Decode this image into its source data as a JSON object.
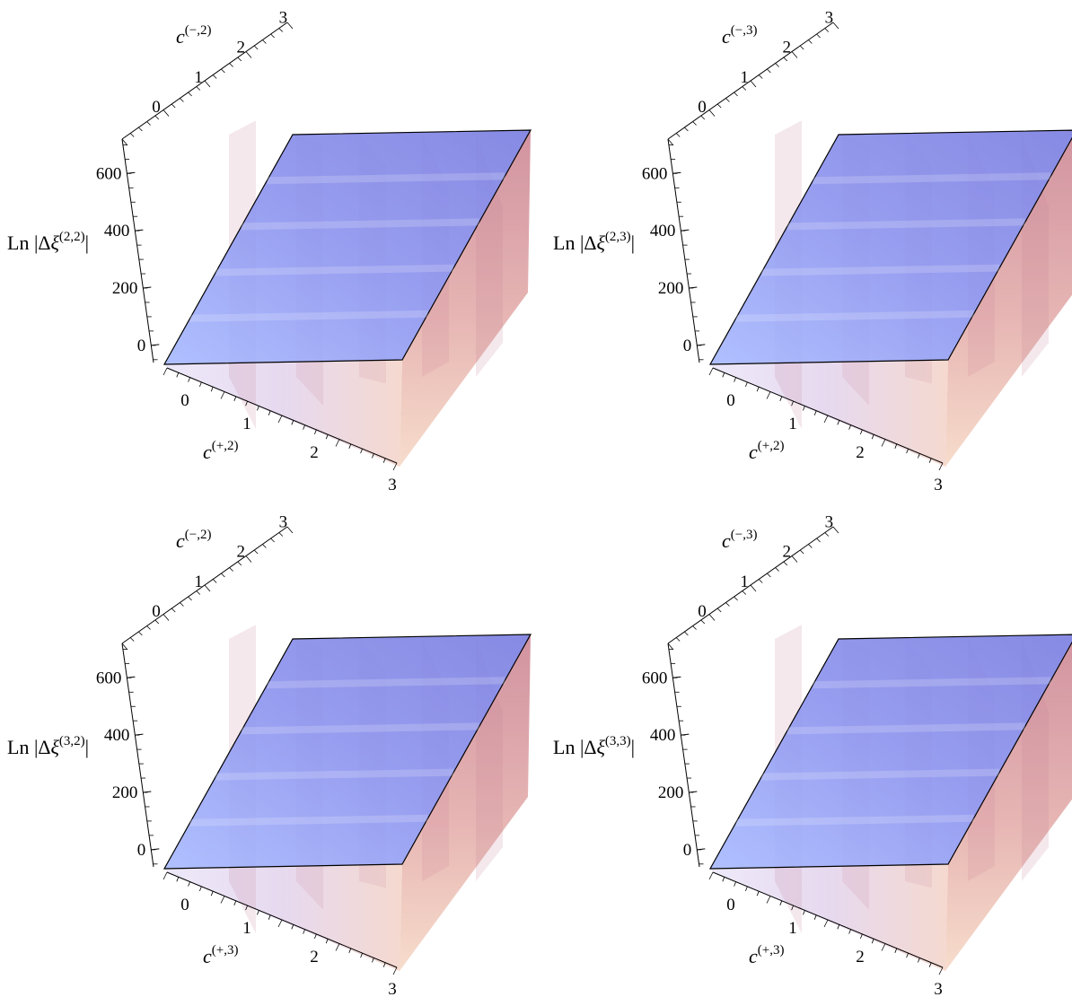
{
  "chart_data": [
    {
      "type": "surface3d",
      "zlabel": "Ln |Δξ(2,2)|",
      "zlabel_base": "Ln |Δ",
      "zlabel_sym": "ξ",
      "zlabel_sup": "(2,2)",
      "zlabel_end": "|",
      "x_axis": {
        "symbol": "c",
        "sup": "(+,2)",
        "ticks": [
          "0",
          "1",
          "2",
          "3"
        ],
        "range": [
          0,
          3
        ]
      },
      "y_axis": {
        "symbol": "c",
        "sup": "(−,2)",
        "ticks": [
          "0",
          "1",
          "2",
          "3"
        ],
        "range": [
          0,
          3
        ]
      },
      "z_axis": {
        "ticks": [
          "0",
          "200",
          "400",
          "600"
        ],
        "range": [
          -60,
          720
        ]
      },
      "surface_corners": [
        {
          "x": 0,
          "y": 0,
          "z": -60
        },
        {
          "x": 3,
          "y": 0,
          "z": -60
        },
        {
          "x": 3,
          "y": 3,
          "z": 720
        },
        {
          "x": 0,
          "y": 3,
          "z": 720
        }
      ]
    },
    {
      "type": "surface3d",
      "zlabel": "Ln |Δξ(2,3)|",
      "zlabel_base": "Ln |Δ",
      "zlabel_sym": "ξ",
      "zlabel_sup": "(2,3)",
      "zlabel_end": "|",
      "x_axis": {
        "symbol": "c",
        "sup": "(+,2)",
        "ticks": [
          "0",
          "1",
          "2",
          "3"
        ],
        "range": [
          0,
          3
        ]
      },
      "y_axis": {
        "symbol": "c",
        "sup": "(−,3)",
        "ticks": [
          "0",
          "1",
          "2",
          "3"
        ],
        "range": [
          0,
          3
        ]
      },
      "z_axis": {
        "ticks": [
          "0",
          "200",
          "400",
          "600"
        ],
        "range": [
          -60,
          720
        ]
      },
      "surface_corners": [
        {
          "x": 0,
          "y": 0,
          "z": -60
        },
        {
          "x": 3,
          "y": 0,
          "z": -60
        },
        {
          "x": 3,
          "y": 3,
          "z": 720
        },
        {
          "x": 0,
          "y": 3,
          "z": 720
        }
      ]
    },
    {
      "type": "surface3d",
      "zlabel": "Ln |Δξ(3,2)|",
      "zlabel_base": "Ln |Δ",
      "zlabel_sym": "ξ",
      "zlabel_sup": "(3,2)",
      "zlabel_end": "|",
      "x_axis": {
        "symbol": "c",
        "sup": "(+,3)",
        "ticks": [
          "0",
          "1",
          "2",
          "3"
        ],
        "range": [
          0,
          3
        ]
      },
      "y_axis": {
        "symbol": "c",
        "sup": "(−,2)",
        "ticks": [
          "0",
          "1",
          "2",
          "3"
        ],
        "range": [
          0,
          3
        ]
      },
      "z_axis": {
        "ticks": [
          "0",
          "200",
          "400",
          "600"
        ],
        "range": [
          -60,
          720
        ]
      },
      "surface_corners": [
        {
          "x": 0,
          "y": 0,
          "z": -60
        },
        {
          "x": 3,
          "y": 0,
          "z": -60
        },
        {
          "x": 3,
          "y": 3,
          "z": 720
        },
        {
          "x": 0,
          "y": 3,
          "z": 720
        }
      ]
    },
    {
      "type": "surface3d",
      "zlabel": "Ln |Δξ(3,3)|",
      "zlabel_base": "Ln |Δ",
      "zlabel_sym": "ξ",
      "zlabel_sup": "(3,3)",
      "zlabel_end": "|",
      "x_axis": {
        "symbol": "c",
        "sup": "(+,3)",
        "ticks": [
          "0",
          "1",
          "2",
          "3"
        ],
        "range": [
          0,
          3
        ]
      },
      "y_axis": {
        "symbol": "c",
        "sup": "(−,3)",
        "ticks": [
          "0",
          "1",
          "2",
          "3"
        ],
        "range": [
          0,
          3
        ]
      },
      "z_axis": {
        "ticks": [
          "0",
          "200",
          "400",
          "600"
        ],
        "range": [
          -60,
          720
        ]
      },
      "surface_corners": [
        {
          "x": 0,
          "y": 0,
          "z": -60
        },
        {
          "x": 3,
          "y": 0,
          "z": -60
        },
        {
          "x": 3,
          "y": 3,
          "z": 720
        },
        {
          "x": 0,
          "y": 3,
          "z": 720
        }
      ]
    }
  ],
  "colors": {
    "surface_top": "#7b7ee0",
    "surface_mid": "#8d94ef",
    "surface_low": "#9fb4ff",
    "side_pink": "#d9909a",
    "side_peach": "#f0c9b2",
    "front_lavender": "#d8d0f2",
    "edge": "#000000"
  }
}
